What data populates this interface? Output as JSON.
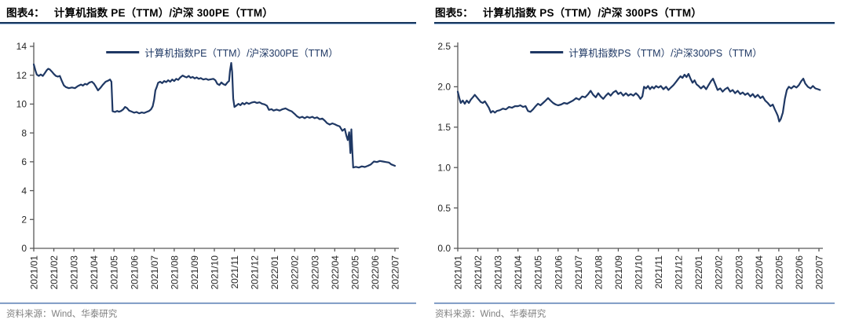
{
  "palette": {
    "line_navy": "#1F3864",
    "rule_dark": "#17365D",
    "rule_light": "#95B3D7",
    "source_gray": "#808080",
    "axis_gray": "#595959"
  },
  "chart_data": [
    {
      "type": "line",
      "figure_label": "图表4：",
      "title": "计算机指数 PE（TTM）/沪深 300PE（TTM）",
      "legend": "计算机指数PE（TTM）/沪深300PE（TTM）",
      "source": "资料来源：Wind、华泰研究",
      "ylim": [
        0,
        14
      ],
      "ytick_labels": [
        "0",
        "2",
        "4",
        "6",
        "8",
        "10",
        "12",
        "14"
      ],
      "xtick_labels": [
        "2021/01",
        "2021/02",
        "2021/03",
        "2021/04",
        "2021/05",
        "2021/06",
        "2021/07",
        "2021/08",
        "2021/09",
        "2021/10",
        "2021/11",
        "2021/12",
        "2022/01",
        "2022/02",
        "2022/03",
        "2022/04",
        "2022/05",
        "2022/06",
        "2022/07"
      ],
      "x_unit": "months since 2021/01",
      "grid": false,
      "legend_position": "top-center",
      "line_color": "#1F3864",
      "points": [
        [
          0,
          12.75
        ],
        [
          0.08,
          12.35
        ],
        [
          0.15,
          12.05
        ],
        [
          0.25,
          11.95
        ],
        [
          0.35,
          12.05
        ],
        [
          0.45,
          11.95
        ],
        [
          0.55,
          12.15
        ],
        [
          0.65,
          12.35
        ],
        [
          0.72,
          12.45
        ],
        [
          0.8,
          12.4
        ],
        [
          0.9,
          12.25
        ],
        [
          1,
          12.08
        ],
        [
          1.1,
          11.95
        ],
        [
          1.2,
          11.9
        ],
        [
          1.3,
          11.95
        ],
        [
          1.4,
          11.6
        ],
        [
          1.5,
          11.3
        ],
        [
          1.6,
          11.18
        ],
        [
          1.75,
          11.1
        ],
        [
          1.9,
          11.15
        ],
        [
          2.05,
          11.1
        ],
        [
          2.2,
          11.25
        ],
        [
          2.35,
          11.35
        ],
        [
          2.45,
          11.28
        ],
        [
          2.55,
          11.4
        ],
        [
          2.65,
          11.35
        ],
        [
          2.78,
          11.5
        ],
        [
          2.9,
          11.55
        ],
        [
          3,
          11.42
        ],
        [
          3.1,
          11.2
        ],
        [
          3.2,
          10.95
        ],
        [
          3.32,
          11.12
        ],
        [
          3.45,
          11.35
        ],
        [
          3.58,
          11.55
        ],
        [
          3.7,
          11.62
        ],
        [
          3.8,
          11.7
        ],
        [
          3.87,
          11.55
        ],
        [
          3.93,
          9.5
        ],
        [
          4.05,
          9.45
        ],
        [
          4.15,
          9.52
        ],
        [
          4.25,
          9.47
        ],
        [
          4.35,
          9.52
        ],
        [
          4.45,
          9.62
        ],
        [
          4.55,
          9.8
        ],
        [
          4.65,
          9.72
        ],
        [
          4.75,
          9.55
        ],
        [
          4.88,
          9.48
        ],
        [
          5,
          9.4
        ],
        [
          5.12,
          9.45
        ],
        [
          5.25,
          9.36
        ],
        [
          5.38,
          9.42
        ],
        [
          5.5,
          9.38
        ],
        [
          5.62,
          9.45
        ],
        [
          5.75,
          9.52
        ],
        [
          5.85,
          9.65
        ],
        [
          5.93,
          9.85
        ],
        [
          6,
          10.3
        ],
        [
          6.06,
          10.95
        ],
        [
          6.12,
          11.15
        ],
        [
          6.2,
          11.48
        ],
        [
          6.3,
          11.55
        ],
        [
          6.4,
          11.45
        ],
        [
          6.5,
          11.6
        ],
        [
          6.6,
          11.52
        ],
        [
          6.7,
          11.65
        ],
        [
          6.8,
          11.55
        ],
        [
          6.9,
          11.7
        ],
        [
          7,
          11.6
        ],
        [
          7.1,
          11.75
        ],
        [
          7.2,
          11.68
        ],
        [
          7.3,
          11.85
        ],
        [
          7.42,
          11.98
        ],
        [
          7.52,
          11.9
        ],
        [
          7.62,
          11.85
        ],
        [
          7.72,
          11.95
        ],
        [
          7.82,
          11.82
        ],
        [
          7.92,
          11.88
        ],
        [
          8.02,
          11.78
        ],
        [
          8.12,
          11.85
        ],
        [
          8.22,
          11.75
        ],
        [
          8.32,
          11.8
        ],
        [
          8.45,
          11.7
        ],
        [
          8.58,
          11.75
        ],
        [
          8.7,
          11.68
        ],
        [
          8.82,
          11.72
        ],
        [
          8.95,
          11.75
        ],
        [
          9.05,
          11.65
        ],
        [
          9.15,
          11.4
        ],
        [
          9.25,
          11.32
        ],
        [
          9.35,
          11.5
        ],
        [
          9.45,
          11.38
        ],
        [
          9.55,
          11.32
        ],
        [
          9.65,
          11.5
        ],
        [
          9.73,
          11.6
        ],
        [
          9.78,
          12.3
        ],
        [
          9.84,
          12.85
        ],
        [
          9.89,
          12.2
        ],
        [
          9.94,
          10.4
        ],
        [
          10,
          9.8
        ],
        [
          10.1,
          9.9
        ],
        [
          10.2,
          10.02
        ],
        [
          10.3,
          9.92
        ],
        [
          10.4,
          10.08
        ],
        [
          10.5,
          9.98
        ],
        [
          10.6,
          10.1
        ],
        [
          10.72,
          10.02
        ],
        [
          10.85,
          10.1
        ],
        [
          11,
          10.15
        ],
        [
          11.12,
          10.08
        ],
        [
          11.25,
          10.12
        ],
        [
          11.38,
          10.02
        ],
        [
          11.5,
          9.98
        ],
        [
          11.62,
          9.88
        ],
        [
          11.72,
          9.6
        ],
        [
          11.85,
          9.65
        ],
        [
          11.95,
          9.55
        ],
        [
          12.1,
          9.62
        ],
        [
          12.25,
          9.55
        ],
        [
          12.4,
          9.65
        ],
        [
          12.55,
          9.7
        ],
        [
          12.7,
          9.58
        ],
        [
          12.85,
          9.5
        ],
        [
          13,
          9.32
        ],
        [
          13.12,
          9.15
        ],
        [
          13.25,
          9.05
        ],
        [
          13.38,
          9.12
        ],
        [
          13.5,
          9.02
        ],
        [
          13.62,
          9.12
        ],
        [
          13.75,
          9.05
        ],
        [
          13.88,
          9.12
        ],
        [
          14,
          9.02
        ],
        [
          14.12,
          9.08
        ],
        [
          14.25,
          8.95
        ],
        [
          14.38,
          9
        ],
        [
          14.5,
          8.85
        ],
        [
          14.62,
          8.68
        ],
        [
          14.75,
          8.58
        ],
        [
          14.88,
          8.66
        ],
        [
          15,
          8.6
        ],
        [
          15.12,
          8.52
        ],
        [
          15.25,
          8.45
        ],
        [
          15.38,
          8.15
        ],
        [
          15.5,
          8.28
        ],
        [
          15.58,
          7.8
        ],
        [
          15.65,
          7.5
        ],
        [
          15.72,
          8.05
        ],
        [
          15.78,
          6.6
        ],
        [
          15.83,
          8.25
        ],
        [
          15.87,
          6.9
        ],
        [
          15.92,
          5.6
        ],
        [
          16.05,
          5.65
        ],
        [
          16.2,
          5.6
        ],
        [
          16.35,
          5.68
        ],
        [
          16.5,
          5.64
        ],
        [
          16.65,
          5.72
        ],
        [
          16.8,
          5.82
        ],
        [
          16.95,
          6.02
        ],
        [
          17.1,
          5.98
        ],
        [
          17.25,
          6.06
        ],
        [
          17.4,
          6.02
        ],
        [
          17.55,
          5.98
        ],
        [
          17.7,
          5.95
        ],
        [
          17.82,
          5.82
        ],
        [
          18,
          5.72
        ]
      ]
    },
    {
      "type": "line",
      "figure_label": "图表5：",
      "title": "计算机指数 PS（TTM）/沪深 300PS（TTM）",
      "legend": "计算机指数PS（TTM）/沪深300PS（TTM）",
      "source": "资料来源：Wind、华泰研究",
      "ylim": [
        0,
        2.5
      ],
      "ytick_labels": [
        "0.0",
        "0.5",
        "1.0",
        "1.5",
        "2.0",
        "2.5"
      ],
      "xtick_labels": [
        "2021/01",
        "2021/02",
        "2021/03",
        "2021/04",
        "2021/05",
        "2021/06",
        "2021/07",
        "2021/08",
        "2021/09",
        "2021/10",
        "2021/11",
        "2021/12",
        "2022/01",
        "2022/02",
        "2022/03",
        "2022/04",
        "2022/05",
        "2022/06",
        "2022/07"
      ],
      "x_unit": "months since 2021/01",
      "grid": false,
      "legend_position": "top-center",
      "line_color": "#1F3864",
      "points": [
        [
          0,
          1.94
        ],
        [
          0.08,
          1.86
        ],
        [
          0.15,
          1.8
        ],
        [
          0.25,
          1.83
        ],
        [
          0.35,
          1.79
        ],
        [
          0.45,
          1.83
        ],
        [
          0.55,
          1.8
        ],
        [
          0.65,
          1.84
        ],
        [
          0.75,
          1.87
        ],
        [
          0.85,
          1.9
        ],
        [
          0.95,
          1.87
        ],
        [
          1.05,
          1.84
        ],
        [
          1.15,
          1.81
        ],
        [
          1.25,
          1.8
        ],
        [
          1.35,
          1.82
        ],
        [
          1.45,
          1.78
        ],
        [
          1.55,
          1.74
        ],
        [
          1.65,
          1.68
        ],
        [
          1.75,
          1.7
        ],
        [
          1.85,
          1.68
        ],
        [
          1.95,
          1.7
        ],
        [
          2.1,
          1.71
        ],
        [
          2.25,
          1.73
        ],
        [
          2.4,
          1.72
        ],
        [
          2.55,
          1.75
        ],
        [
          2.7,
          1.74
        ],
        [
          2.85,
          1.76
        ],
        [
          3,
          1.76
        ],
        [
          3.12,
          1.77
        ],
        [
          3.25,
          1.75
        ],
        [
          3.38,
          1.76
        ],
        [
          3.5,
          1.7
        ],
        [
          3.62,
          1.69
        ],
        [
          3.75,
          1.72
        ],
        [
          3.88,
          1.76
        ],
        [
          4,
          1.79
        ],
        [
          4.12,
          1.77
        ],
        [
          4.25,
          1.8
        ],
        [
          4.38,
          1.83
        ],
        [
          4.5,
          1.86
        ],
        [
          4.62,
          1.83
        ],
        [
          4.75,
          1.8
        ],
        [
          4.88,
          1.78
        ],
        [
          5,
          1.77
        ],
        [
          5.15,
          1.78
        ],
        [
          5.3,
          1.8
        ],
        [
          5.45,
          1.79
        ],
        [
          5.6,
          1.81
        ],
        [
          5.75,
          1.83
        ],
        [
          5.9,
          1.86
        ],
        [
          6.05,
          1.84
        ],
        [
          6.2,
          1.88
        ],
        [
          6.35,
          1.87
        ],
        [
          6.5,
          1.91
        ],
        [
          6.62,
          1.95
        ],
        [
          6.75,
          1.9
        ],
        [
          6.88,
          1.87
        ],
        [
          7,
          1.92
        ],
        [
          7.12,
          1.88
        ],
        [
          7.25,
          1.85
        ],
        [
          7.38,
          1.89
        ],
        [
          7.5,
          1.92
        ],
        [
          7.62,
          1.89
        ],
        [
          7.75,
          1.93
        ],
        [
          7.88,
          1.95
        ],
        [
          8,
          1.91
        ],
        [
          8.12,
          1.93
        ],
        [
          8.25,
          1.89
        ],
        [
          8.38,
          1.92
        ],
        [
          8.5,
          1.89
        ],
        [
          8.62,
          1.91
        ],
        [
          8.75,
          1.89
        ],
        [
          8.88,
          1.92
        ],
        [
          9,
          1.89
        ],
        [
          9.1,
          1.85
        ],
        [
          9.2,
          1.88
        ],
        [
          9.28,
          2
        ],
        [
          9.38,
          1.98
        ],
        [
          9.48,
          2.01
        ],
        [
          9.58,
          1.97
        ],
        [
          9.68,
          2
        ],
        [
          9.78,
          1.98
        ],
        [
          9.88,
          2.01
        ],
        [
          10,
          1.99
        ],
        [
          10.12,
          2.01
        ],
        [
          10.25,
          1.97
        ],
        [
          10.38,
          2
        ],
        [
          10.5,
          1.96
        ],
        [
          10.62,
          1.99
        ],
        [
          10.75,
          2.02
        ],
        [
          10.88,
          2.06
        ],
        [
          11,
          2.1
        ],
        [
          11.1,
          2.13
        ],
        [
          11.2,
          2.11
        ],
        [
          11.3,
          2.15
        ],
        [
          11.4,
          2.12
        ],
        [
          11.5,
          2.16
        ],
        [
          11.6,
          2.1
        ],
        [
          11.7,
          2.05
        ],
        [
          11.8,
          2.08
        ],
        [
          11.9,
          2.03
        ],
        [
          12,
          2.01
        ],
        [
          12.12,
          1.98
        ],
        [
          12.25,
          2.01
        ],
        [
          12.38,
          1.97
        ],
        [
          12.5,
          2.02
        ],
        [
          12.62,
          2.07
        ],
        [
          12.72,
          2.1
        ],
        [
          12.82,
          2.04
        ],
        [
          12.95,
          1.96
        ],
        [
          13.08,
          1.98
        ],
        [
          13.2,
          1.94
        ],
        [
          13.32,
          1.97
        ],
        [
          13.45,
          1.99
        ],
        [
          13.58,
          1.94
        ],
        [
          13.7,
          1.96
        ],
        [
          13.82,
          1.92
        ],
        [
          13.95,
          1.95
        ],
        [
          14.08,
          1.91
        ],
        [
          14.2,
          1.93
        ],
        [
          14.32,
          1.9
        ],
        [
          14.45,
          1.92
        ],
        [
          14.58,
          1.88
        ],
        [
          14.7,
          1.91
        ],
        [
          14.82,
          1.87
        ],
        [
          14.95,
          1.9
        ],
        [
          15.08,
          1.86
        ],
        [
          15.2,
          1.88
        ],
        [
          15.32,
          1.83
        ],
        [
          15.45,
          1.8
        ],
        [
          15.58,
          1.76
        ],
        [
          15.7,
          1.78
        ],
        [
          15.8,
          1.72
        ],
        [
          15.88,
          1.68
        ],
        [
          15.95,
          1.64
        ],
        [
          16.02,
          1.57
        ],
        [
          16.1,
          1.6
        ],
        [
          16.2,
          1.68
        ],
        [
          16.3,
          1.85
        ],
        [
          16.4,
          1.96
        ],
        [
          16.5,
          2
        ],
        [
          16.62,
          1.98
        ],
        [
          16.75,
          2.01
        ],
        [
          16.88,
          1.99
        ],
        [
          17,
          2.02
        ],
        [
          17.12,
          2.07
        ],
        [
          17.22,
          2.1
        ],
        [
          17.32,
          2.04
        ],
        [
          17.45,
          2
        ],
        [
          17.58,
          1.98
        ],
        [
          17.7,
          2.01
        ],
        [
          17.82,
          1.98
        ],
        [
          17.95,
          1.97
        ],
        [
          18.05,
          1.96
        ]
      ]
    }
  ]
}
